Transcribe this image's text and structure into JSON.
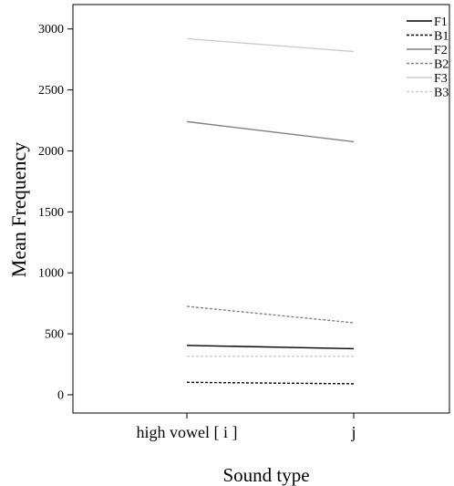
{
  "chart_data": {
    "type": "line",
    "xlabel": "Sound type",
    "ylabel": "Mean Frequency",
    "categories": [
      "high vowel [ i ]",
      "j"
    ],
    "ylim": [
      -150,
      3200
    ],
    "yticks": [
      0,
      500,
      1000,
      1500,
      2000,
      2500,
      3000
    ],
    "grid": false,
    "legend_position": "top-right",
    "series": [
      {
        "name": "F1",
        "values": [
          405,
          378
        ],
        "color": "#000000",
        "dash": "solid"
      },
      {
        "name": "B1",
        "values": [
          102,
          90
        ],
        "color": "#000000",
        "dash": "dashed"
      },
      {
        "name": "F2",
        "values": [
          2240,
          2075
        ],
        "color": "#808080",
        "dash": "solid"
      },
      {
        "name": "B2",
        "values": [
          725,
          590
        ],
        "color": "#808080",
        "dash": "dashed"
      },
      {
        "name": "F3",
        "values": [
          2920,
          2815
        ],
        "color": "#cccccc",
        "dash": "solid"
      },
      {
        "name": "B3",
        "values": [
          315,
          315
        ],
        "color": "#cccccc",
        "dash": "dashed"
      }
    ]
  }
}
